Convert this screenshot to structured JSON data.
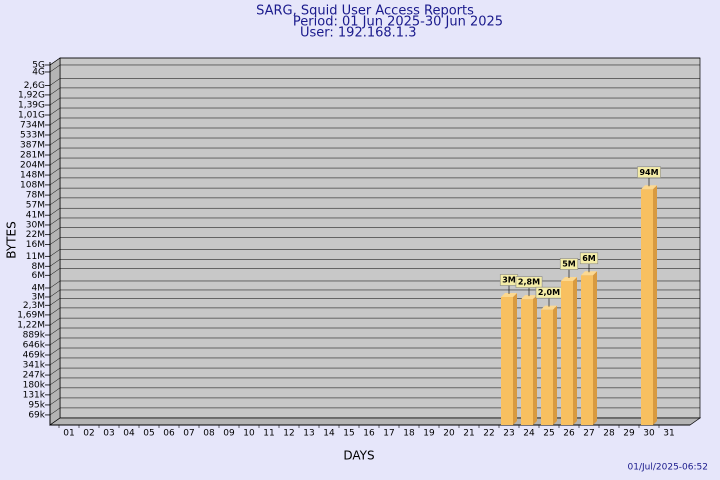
{
  "chart_data": {
    "type": "bar",
    "title": "SARG, Squid User Access Reports",
    "subtitle": "Period: 01 Jun 2025-30 Jun 2025",
    "user": "User: 192.168.1.3",
    "x_label": "DAYS",
    "y_label": "BYTES",
    "footer": "01/Jul/2025-06:52",
    "yscale": "log",
    "grid": true,
    "color": "#f8c060",
    "categories": [
      "01",
      "02",
      "03",
      "04",
      "05",
      "06",
      "07",
      "08",
      "09",
      "10",
      "11",
      "12",
      "13",
      "14",
      "15",
      "16",
      "17",
      "18",
      "19",
      "20",
      "21",
      "22",
      "23",
      "24",
      "25",
      "26",
      "27",
      "28",
      "29",
      "30",
      "31"
    ],
    "values": [
      null,
      null,
      null,
      null,
      null,
      null,
      null,
      null,
      null,
      null,
      null,
      null,
      null,
      null,
      null,
      null,
      null,
      null,
      null,
      null,
      null,
      null,
      3000000,
      2800000,
      2000000,
      5000000,
      6000000,
      null,
      null,
      94000000,
      null
    ],
    "value_labels": [
      null,
      null,
      null,
      null,
      null,
      null,
      null,
      null,
      null,
      null,
      null,
      null,
      null,
      null,
      null,
      null,
      null,
      null,
      null,
      null,
      null,
      null,
      "3M",
      "2,8M",
      "2,0M",
      "5M",
      "6M",
      null,
      null,
      "94M",
      null
    ],
    "ylim": [
      50000,
      5000000000
    ],
    "yticks": [
      {
        "value": 5000000000,
        "label": "5G"
      },
      {
        "value": 4000000000,
        "label": "4G"
      },
      {
        "value": 2600000000,
        "label": "2,6G"
      },
      {
        "value": 1920000000,
        "label": "1,92G"
      },
      {
        "value": 1390000000,
        "label": "1,39G"
      },
      {
        "value": 1010000000,
        "label": "1,01G"
      },
      {
        "value": 734000000,
        "label": "734M"
      },
      {
        "value": 533000000,
        "label": "533M"
      },
      {
        "value": 387000000,
        "label": "387M"
      },
      {
        "value": 281000000,
        "label": "281M"
      },
      {
        "value": 204000000,
        "label": "204M"
      },
      {
        "value": 148000000,
        "label": "148M"
      },
      {
        "value": 108000000,
        "label": "108M"
      },
      {
        "value": 78000000,
        "label": "78M"
      },
      {
        "value": 57000000,
        "label": "57M"
      },
      {
        "value": 41000000,
        "label": "41M"
      },
      {
        "value": 30000000,
        "label": "30M"
      },
      {
        "value": 22000000,
        "label": "22M"
      },
      {
        "value": 16000000,
        "label": "16M"
      },
      {
        "value": 11000000,
        "label": "11M"
      },
      {
        "value": 8000000,
        "label": "8M"
      },
      {
        "value": 6000000,
        "label": "6M"
      },
      {
        "value": 4000000,
        "label": "4M"
      },
      {
        "value": 3000000,
        "label": "3M"
      },
      {
        "value": 2300000,
        "label": "2,3M"
      },
      {
        "value": 1690000,
        "label": "1,69M"
      },
      {
        "value": 1220000,
        "label": "1,22M"
      },
      {
        "value": 889000,
        "label": "889k"
      },
      {
        "value": 646000,
        "label": "646k"
      },
      {
        "value": 469000,
        "label": "469k"
      },
      {
        "value": 341000,
        "label": "341k"
      },
      {
        "value": 247000,
        "label": "247k"
      },
      {
        "value": 180000,
        "label": "180k"
      },
      {
        "value": 131000,
        "label": "131k"
      },
      {
        "value": 95000,
        "label": "95k"
      },
      {
        "value": 69000,
        "label": "69k"
      }
    ]
  }
}
